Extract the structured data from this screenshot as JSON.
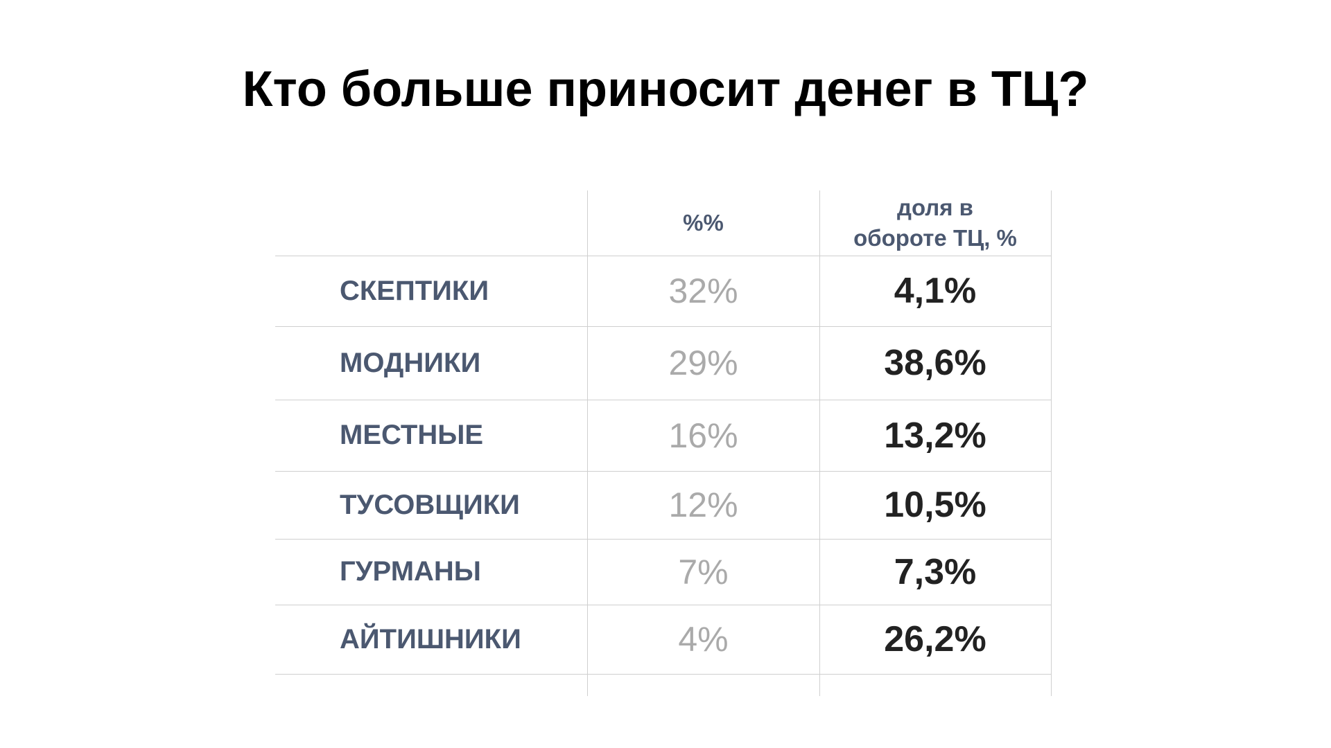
{
  "title": "Кто больше приносит денег в ТЦ?",
  "table": {
    "header": {
      "share": "%%",
      "turnover": [
        "доля в",
        "обороте ТЦ, %"
      ]
    },
    "rows": [
      [
        "СКЕПТИКИ",
        "32%",
        "4,1%"
      ],
      [
        "МОДНИКИ",
        "29%",
        "38,6%"
      ],
      [
        "МЕСТНЫЕ",
        "16%",
        "13,2%"
      ],
      [
        "ТУСОВЩИКИ",
        "12%",
        "10,5%"
      ],
      [
        "ГУРМАНЫ",
        "7%",
        "7,3%"
      ],
      [
        "АЙТИШНИКИ",
        "4%",
        "26,2%"
      ]
    ]
  }
}
